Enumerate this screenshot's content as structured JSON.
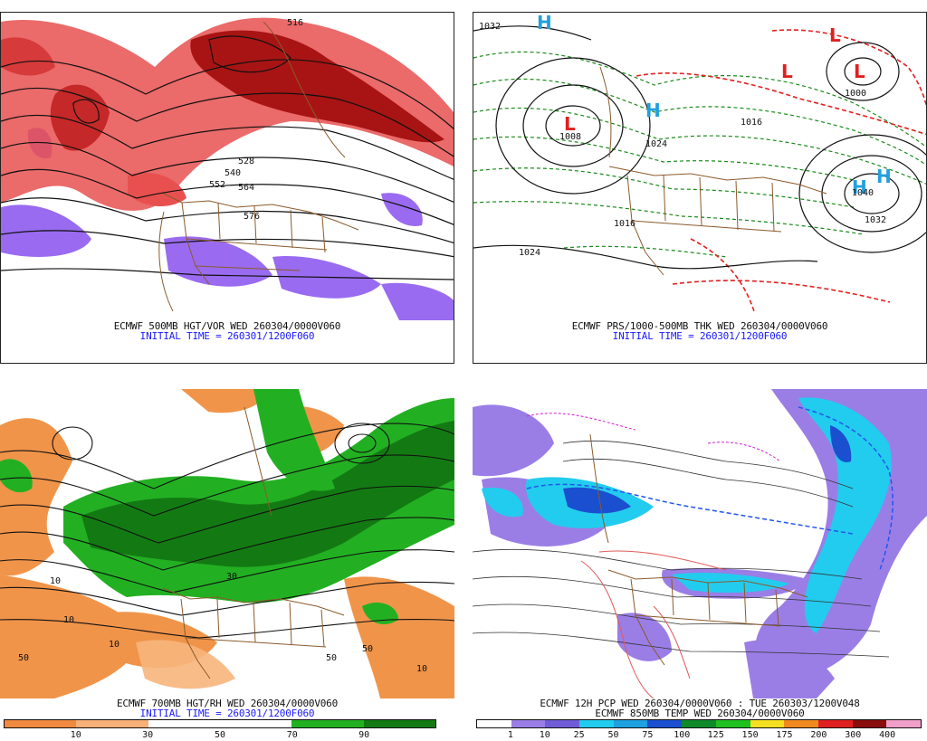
{
  "panels": {
    "tl": {
      "caption1": "ECMWF 500MB HGT/VOR WED 260304/0000V060",
      "caption2": "INITIAL TIME = 260301/1200F060",
      "contour_labels": [
        "516",
        "528",
        "540",
        "552",
        "564",
        "576"
      ]
    },
    "tr": {
      "caption1": "ECMWF PRS/1000-500MB THK WED 260304/0000V060",
      "caption2": "INITIAL TIME = 260301/1200F060",
      "contour_labels": [
        "1032",
        "1024",
        "1016",
        "1008",
        "1000",
        "1040",
        "1032",
        "1024",
        "1016"
      ],
      "highs": [
        "H",
        "H",
        "H",
        "H"
      ],
      "lows": [
        "L",
        "L",
        "L",
        "L"
      ]
    },
    "bl": {
      "caption1": "ECMWF 700MB HGT/RH WED 260304/0000V060",
      "caption2": "INITIAL TIME = 260301/1200F060",
      "colorbar_labels": [
        "10",
        "30",
        "50",
        "70",
        "90"
      ]
    },
    "br": {
      "caption1": "ECMWF 12H PCP WED 260304/0000V060 : TUE 260303/1200V048",
      "caption2": "ECMWF 850MB TEMP WED 260304/0000V060",
      "colorbar_labels": [
        "1",
        "10",
        "25",
        "50",
        "75",
        "100",
        "125",
        "150",
        "175",
        "200",
        "300",
        "400"
      ]
    }
  },
  "colors": {
    "vorticity": "#dd2222",
    "vorticity_dark": "#8a0d0d",
    "negative_vorticity": "#8f5bef",
    "rh_green": "#16a016",
    "dry_orange": "#f0944a",
    "pcp_purple": "#9a7ee6",
    "pcp_cyan": "#22ccee",
    "border_brown": "#8b5a2b",
    "caption_blue": "#1a1aff"
  }
}
